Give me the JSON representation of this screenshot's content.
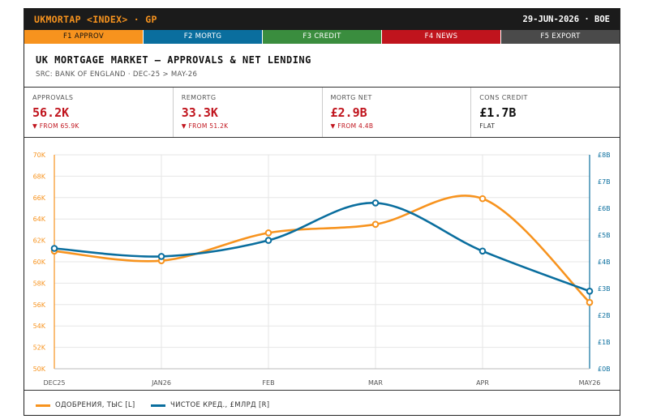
{
  "topbar": {
    "brand": "UKMORTAP <INDEX> · GP",
    "meta": "29-JUN-2026 · BOE"
  },
  "fkeys": [
    {
      "label": "F1 APPROV",
      "color": "#f7931e",
      "active": true
    },
    {
      "label": "F2 MORTG",
      "color": "#0a6e9e",
      "active": false
    },
    {
      "label": "F3 CREDIT",
      "color": "#3a8d3e",
      "active": false
    },
    {
      "label": "F4 NEWS",
      "color": "#c0141d",
      "active": false
    },
    {
      "label": "F5 EXPORT",
      "color": "#4a4a4a",
      "active": false
    }
  ],
  "header": {
    "title": "UK MORTGAGE MARKET — APPROVALS & NET LENDING",
    "source": "SRC: BANK OF ENGLAND · DEC-25 > MAY-26"
  },
  "kpis": [
    {
      "label": "APPROVALS",
      "value": "56.2K",
      "change": "▼ FROM 65.9K",
      "trend": "down"
    },
    {
      "label": "REMORTG",
      "value": "33.3K",
      "change": "▼ FROM 51.2K",
      "trend": "down"
    },
    {
      "label": "MORTG NET",
      "value": "£2.9B",
      "change": "▼ FROM 4.4B",
      "trend": "down"
    },
    {
      "label": "CONS CREDIT",
      "value": "£1.7B",
      "change": "FLAT",
      "trend": "flat"
    }
  ],
  "colors": {
    "approvals": "#f7931e",
    "net_lending": "#0a6e9e",
    "grid": "#e6e6e6",
    "down": "#c0141d"
  },
  "chart_data": {
    "type": "line",
    "categories": [
      "DEC25",
      "JAN26",
      "FEB",
      "MAR",
      "APR",
      "MAY26"
    ],
    "series": [
      {
        "name": "ОДОБРЕНИЯ, ТЫС [L]",
        "axis": "left",
        "color": "#f7931e",
        "values": [
          61.0,
          60.1,
          62.7,
          63.5,
          65.9,
          56.2
        ]
      },
      {
        "name": "ЧИСТОЕ КРЕД., £МЛРД [R]",
        "axis": "right",
        "color": "#0a6e9e",
        "values": [
          4.5,
          4.2,
          4.8,
          6.2,
          4.4,
          2.9
        ]
      }
    ],
    "y_left": {
      "min": 50,
      "max": 70,
      "step": 2,
      "tick_labels": [
        "50K",
        "52K",
        "54K",
        "56K",
        "58K",
        "60K",
        "62K",
        "64K",
        "66K",
        "68K",
        "70K"
      ]
    },
    "y_right": {
      "min": 0,
      "max": 8,
      "step": 1,
      "tick_labels": [
        "£0B",
        "£1B",
        "£2B",
        "£3B",
        "£4B",
        "£5B",
        "£6B",
        "£7B",
        "£8B"
      ]
    },
    "grid": true,
    "legend_position": "bottom-left"
  }
}
